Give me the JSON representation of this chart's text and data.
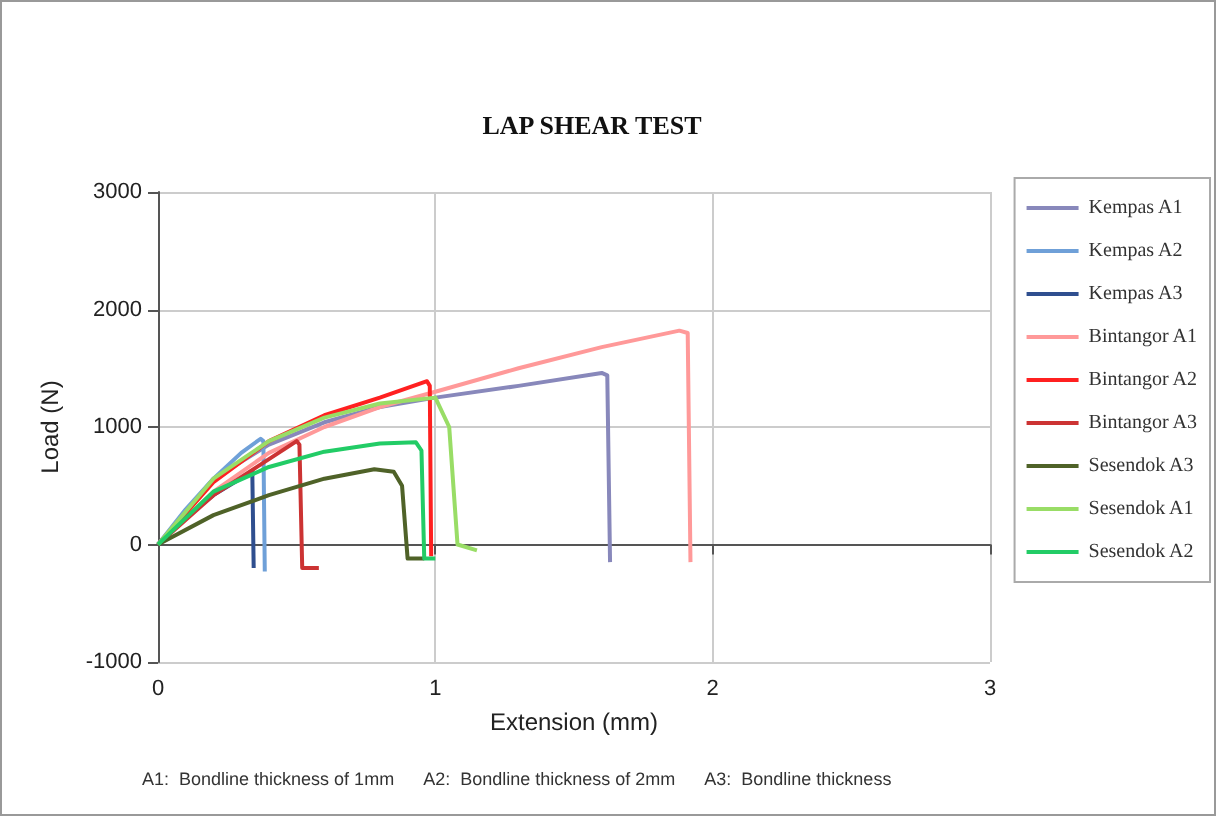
{
  "chart_data": {
    "type": "line",
    "title": "LAP SHEAR TEST",
    "xlabel": "Extension (mm)",
    "ylabel": "Load (N)",
    "annotations": [
      "A1:  Bondline thickness of 1mm      A2:  Bondline thickness of 2mm      A3:  Bondline thickness"
    ],
    "xlim": [
      0,
      3
    ],
    "xticks": [
      0,
      1,
      2,
      3
    ],
    "ylim": [
      -1000,
      3000
    ],
    "yticks": [
      -1000,
      0,
      1000,
      2000,
      3000
    ],
    "grid": true,
    "legend": "right",
    "marker": "none",
    "line_style": "solid",
    "series": [
      {
        "name": "Kempas A1",
        "color": "#8888bb",
        "x": [
          0,
          0.2,
          0.4,
          0.6,
          0.8,
          1.0,
          1.3,
          1.6,
          1.62,
          1.63
        ],
        "values": [
          0,
          560,
          850,
          1040,
          1170,
          1250,
          1350,
          1460,
          1440,
          -150
        ]
      },
      {
        "name": "Kempas A2",
        "color": "#6fa0d8",
        "x": [
          0,
          0.1,
          0.2,
          0.3,
          0.37,
          0.38,
          0.385
        ],
        "values": [
          0,
          300,
          560,
          780,
          900,
          880,
          -230
        ]
      },
      {
        "name": "Kempas A3",
        "color": "#2f4f8f",
        "x": [
          0,
          0.1,
          0.2,
          0.34,
          0.345
        ],
        "values": [
          0,
          230,
          420,
          620,
          -200
        ]
      },
      {
        "name": "Bintangor A1",
        "color": "#ff9999",
        "x": [
          0,
          0.2,
          0.4,
          0.6,
          0.8,
          1.0,
          1.3,
          1.6,
          1.88,
          1.91,
          1.92
        ],
        "values": [
          0,
          450,
          780,
          1000,
          1170,
          1300,
          1500,
          1680,
          1820,
          1800,
          -150
        ]
      },
      {
        "name": "Bintangor A2",
        "color": "#ff2020",
        "x": [
          0,
          0.2,
          0.4,
          0.6,
          0.8,
          0.97,
          0.98,
          0.985
        ],
        "values": [
          0,
          530,
          880,
          1100,
          1250,
          1390,
          1350,
          -100
        ]
      },
      {
        "name": "Bintangor A3",
        "color": "#cc3333",
        "x": [
          0,
          0.2,
          0.35,
          0.5,
          0.51,
          0.52,
          0.58
        ],
        "values": [
          0,
          420,
          650,
          880,
          850,
          -200,
          -200
        ]
      },
      {
        "name": "Sesendok A3",
        "color": "#4f6228",
        "x": [
          0,
          0.2,
          0.4,
          0.6,
          0.78,
          0.85,
          0.88,
          0.9,
          0.96
        ],
        "values": [
          0,
          250,
          420,
          560,
          640,
          620,
          500,
          -120,
          -120
        ]
      },
      {
        "name": "Sesendok A1",
        "color": "#99dd66",
        "x": [
          0,
          0.2,
          0.4,
          0.6,
          0.8,
          1.0,
          1.05,
          1.08,
          1.15
        ],
        "values": [
          0,
          560,
          880,
          1080,
          1200,
          1250,
          1000,
          0,
          -50
        ]
      },
      {
        "name": "Sesendok A2",
        "color": "#22cc66",
        "x": [
          0,
          0.2,
          0.4,
          0.6,
          0.8,
          0.93,
          0.95,
          0.96,
          1.0
        ],
        "values": [
          0,
          450,
          660,
          790,
          860,
          870,
          800,
          -120,
          -120
        ]
      }
    ]
  }
}
